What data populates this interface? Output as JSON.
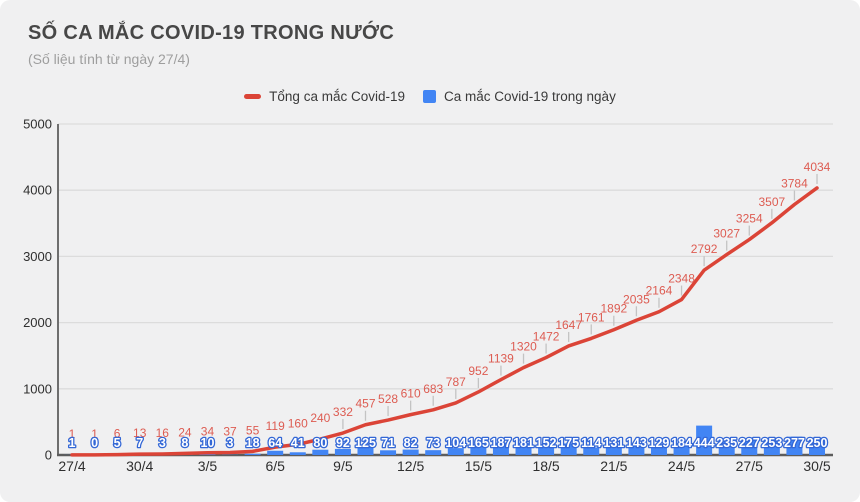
{
  "header": {
    "title": "SỐ CA MẮC COVID-19 TRONG NƯỚC",
    "subtitle": "(Số liệu tính từ ngày 27/4)"
  },
  "legend": {
    "items": [
      {
        "label": "Tổng ca mắc Covid-19",
        "color": "#db4437",
        "shape": "line"
      },
      {
        "label": "Ca mắc Covid-19 trong ngày",
        "color": "#4285f4",
        "shape": "square"
      }
    ],
    "position": "top"
  },
  "chart_data": {
    "type": "combo",
    "title": "SỐ CA MẮC COVID-19 TRONG NƯỚC",
    "subtitle": "(Số liệu tính từ ngày 27/4)",
    "n_points": 34,
    "x_tick_labels": [
      "27/4",
      "30/4",
      "3/5",
      "6/5",
      "9/5",
      "12/5",
      "15/5",
      "18/5",
      "21/5",
      "24/5",
      "27/5",
      "30/5"
    ],
    "x_tick_interval": 3,
    "series": [
      {
        "name": "Tổng ca mắc Covid-19",
        "type": "line",
        "color": "#db4437",
        "annotation_color": "#dd5c52",
        "values": [
          1,
          1,
          6,
          13,
          16,
          24,
          34,
          37,
          55,
          119,
          160,
          240,
          332,
          457,
          528,
          610,
          683,
          787,
          952,
          1139,
          1320,
          1472,
          1647,
          1761,
          1892,
          2035,
          2164,
          2348,
          2792,
          3027,
          3254,
          3507,
          3784,
          4034
        ]
      },
      {
        "name": "Ca mắc Covid-19 trong ngày",
        "type": "bar",
        "color": "#4285f4",
        "annotation_color": "#ffffff",
        "values": [
          1,
          0,
          5,
          7,
          3,
          8,
          10,
          3,
          18,
          64,
          41,
          80,
          92,
          125,
          71,
          82,
          73,
          104,
          165,
          187,
          181,
          152,
          175,
          114,
          131,
          143,
          129,
          184,
          444,
          235,
          227,
          253,
          277,
          250
        ]
      }
    ],
    "ylim": [
      0,
      5000
    ],
    "y_ticks": [
      0,
      1000,
      2000,
      3000,
      4000,
      5000
    ],
    "grid": true,
    "legend_position": "top"
  },
  "colors": {
    "background": "#f0f0f1",
    "gridline": "#dcdcdc",
    "axis": "#5c5c5c",
    "stem": "#c3c3c3"
  }
}
